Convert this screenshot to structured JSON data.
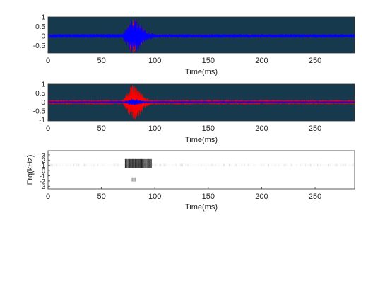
{
  "colors": {
    "plot_background": "#17394d",
    "series_red": "#ff0000",
    "series_blue": "#0000ff",
    "spectrogram_background": "#ffffff",
    "spectrogram_ink": "#000000",
    "axis": "#333333"
  },
  "chart_data": [
    {
      "type": "line",
      "xlabel": "Time(ms)",
      "ylabel": "",
      "xlim": [
        0,
        287
      ],
      "ylim": [
        -0.9,
        1.0
      ],
      "xticks": [
        "0",
        "50",
        "100",
        "150",
        "200",
        "250"
      ],
      "yticks": [
        "1",
        "0.5",
        "0",
        "-0.5"
      ],
      "xtick_values": [
        0,
        50,
        100,
        150,
        200,
        250
      ],
      "ytick_values": [
        1,
        0.5,
        0,
        -0.5
      ],
      "grid": false,
      "series": [
        {
          "color": "#ff0000",
          "envelope_t": [
            0,
            70,
            74,
            78,
            80,
            82,
            86,
            92,
            100,
            287
          ],
          "envelope_amp": [
            0.07,
            0.08,
            0.4,
            0.85,
            0.95,
            0.9,
            0.6,
            0.2,
            0.08,
            0.07
          ]
        },
        {
          "color": "#0000ff",
          "envelope_t": [
            0,
            70,
            74,
            78,
            80,
            82,
            86,
            92,
            100,
            287
          ],
          "envelope_amp": [
            0.1,
            0.12,
            0.55,
            0.9,
            0.95,
            0.92,
            0.7,
            0.25,
            0.1,
            0.1
          ]
        }
      ]
    },
    {
      "type": "line",
      "xlabel": "Time(ms)",
      "ylabel": "",
      "xlim": [
        0,
        287
      ],
      "ylim": [
        -1.05,
        1.0
      ],
      "xticks": [
        "0",
        "50",
        "100",
        "150",
        "200",
        "250"
      ],
      "yticks": [
        "1",
        "0.5",
        "0",
        "-0.5",
        "-1"
      ],
      "xtick_values": [
        0,
        50,
        100,
        150,
        200,
        250
      ],
      "ytick_values": [
        1,
        0.5,
        0,
        -0.5,
        -1
      ],
      "grid": false,
      "series": [
        {
          "color": "#ff0000",
          "envelope_t": [
            0,
            70,
            73,
            77,
            80,
            84,
            87,
            90,
            96,
            287
          ],
          "envelope_amp": [
            0.12,
            0.14,
            0.45,
            0.85,
            1.0,
            0.95,
            0.7,
            0.35,
            0.14,
            0.12
          ]
        },
        {
          "color": "#0000ff",
          "envelope_t": [
            0,
            70,
            74,
            78,
            80,
            84,
            88,
            95,
            287
          ],
          "envelope_amp": [
            0.03,
            0.04,
            0.1,
            0.18,
            0.2,
            0.15,
            0.08,
            0.04,
            0.03
          ]
        }
      ]
    },
    {
      "type": "heatmap",
      "xlabel": "Time(ms)",
      "ylabel": "Frq(kHz)",
      "xlim": [
        0,
        287
      ],
      "ylim": [
        -3.5,
        3.8
      ],
      "xticks": [
        "0",
        "50",
        "100",
        "150",
        "200",
        "250"
      ],
      "yticks": [
        "3",
        "2",
        "1",
        "0",
        "-1",
        "-2",
        "-3"
      ],
      "xtick_values": [
        0,
        50,
        100,
        150,
        200,
        250
      ],
      "ytick_values": [
        3,
        2,
        1,
        0,
        -1,
        -2,
        -3
      ],
      "grid": false,
      "blobs": [
        {
          "t": [
            72,
            97
          ],
          "f": [
            0.5,
            2.2
          ],
          "intensity": 0.95
        },
        {
          "t": [
            78,
            82
          ],
          "f": [
            -2.1,
            -1.3
          ],
          "intensity": 0.35
        },
        {
          "t": [
            0,
            287
          ],
          "f": [
            0.8,
            1.3
          ],
          "intensity": 0.12
        }
      ]
    }
  ]
}
